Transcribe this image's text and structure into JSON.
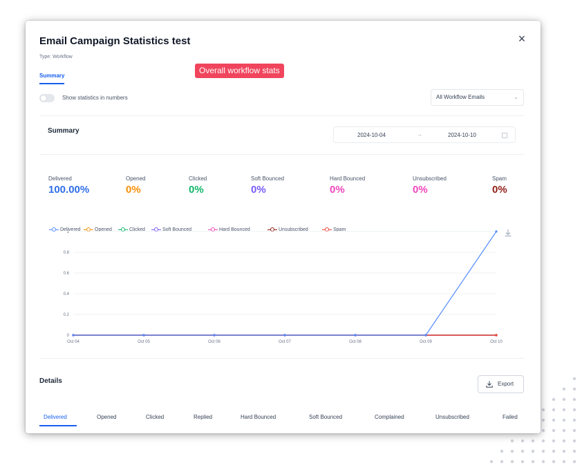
{
  "modal": {
    "title": "Email Campaign Statistics test",
    "type_line": "Type: Workflow",
    "close_label": "×",
    "tab_label": "Summary",
    "badge_label": "Overall workflow stats"
  },
  "controls": {
    "toggle_label": "Show statistics in numbers",
    "toggle_on": false,
    "email_select_value": "All Workflow Emails"
  },
  "summary": {
    "title": "Summary",
    "date_start": "2024-10-04",
    "date_arrow": "→",
    "date_end": "2024-10-10",
    "stats": [
      {
        "label": "Delivered",
        "value": "100.00%",
        "color": "#2f6fea"
      },
      {
        "label": "Opened",
        "value": "0%",
        "color": "#f79009"
      },
      {
        "label": "Clicked",
        "value": "0%",
        "color": "#12b76a"
      },
      {
        "label": "Soft Bounced",
        "value": "0%",
        "color": "#7a5af8"
      },
      {
        "label": "Hard Bounced",
        "value": "0%",
        "color": "#ee46bc"
      },
      {
        "label": "Unsubscribed",
        "value": "0%",
        "color": "#ee46bc"
      },
      {
        "label": "Spam",
        "value": "0%",
        "color": "#912018"
      }
    ]
  },
  "chart_data": {
    "type": "line",
    "x": [
      "Oct 04",
      "Oct 05",
      "Oct 06",
      "Oct 07",
      "Oct 08",
      "Oct 09",
      "Oct 10"
    ],
    "ylim": [
      0,
      1
    ],
    "yticks": [
      "0",
      "0.2",
      "0.4",
      "0.6",
      "0.8",
      "1"
    ],
    "grid": true,
    "legend_position": "top-left",
    "series": [
      {
        "name": "Delivered",
        "color": "#528bff",
        "values": [
          0,
          0,
          0,
          0,
          0,
          0,
          1
        ]
      },
      {
        "name": "Opened",
        "color": "#f79009",
        "values": [
          0,
          0,
          0,
          0,
          0,
          0,
          0
        ]
      },
      {
        "name": "Clicked",
        "color": "#12b76a",
        "values": [
          0,
          0,
          0,
          0,
          0,
          0,
          0
        ]
      },
      {
        "name": "Soft Bounced",
        "color": "#7a5af8",
        "values": [
          0,
          0,
          0,
          0,
          0,
          0,
          0
        ]
      },
      {
        "name": "Hard Bounced",
        "color": "#ee46bc",
        "values": [
          0,
          0,
          0,
          0,
          0,
          0,
          0
        ]
      },
      {
        "name": "Unsubscribed",
        "color": "#912018",
        "values": [
          0,
          0,
          0,
          0,
          0,
          0,
          0
        ]
      },
      {
        "name": "Spam",
        "color": "#f04438",
        "values": [
          0,
          0,
          0,
          0,
          0,
          0,
          0
        ]
      }
    ]
  },
  "details": {
    "title": "Details",
    "export_label": "Export",
    "tabs": [
      "Delivered",
      "Opened",
      "Clicked",
      "Replied",
      "Hard Bounced",
      "Soft Bounced",
      "Complained",
      "Unsubscribed",
      "Failed"
    ],
    "active_tab": "Delivered"
  },
  "icons": {
    "close": "close-icon",
    "toggle": "toggle-switch",
    "select_chevron": "chevron-down-icon",
    "calendar": "calendar-icon",
    "download": "download-icon",
    "export": "export-icon"
  }
}
